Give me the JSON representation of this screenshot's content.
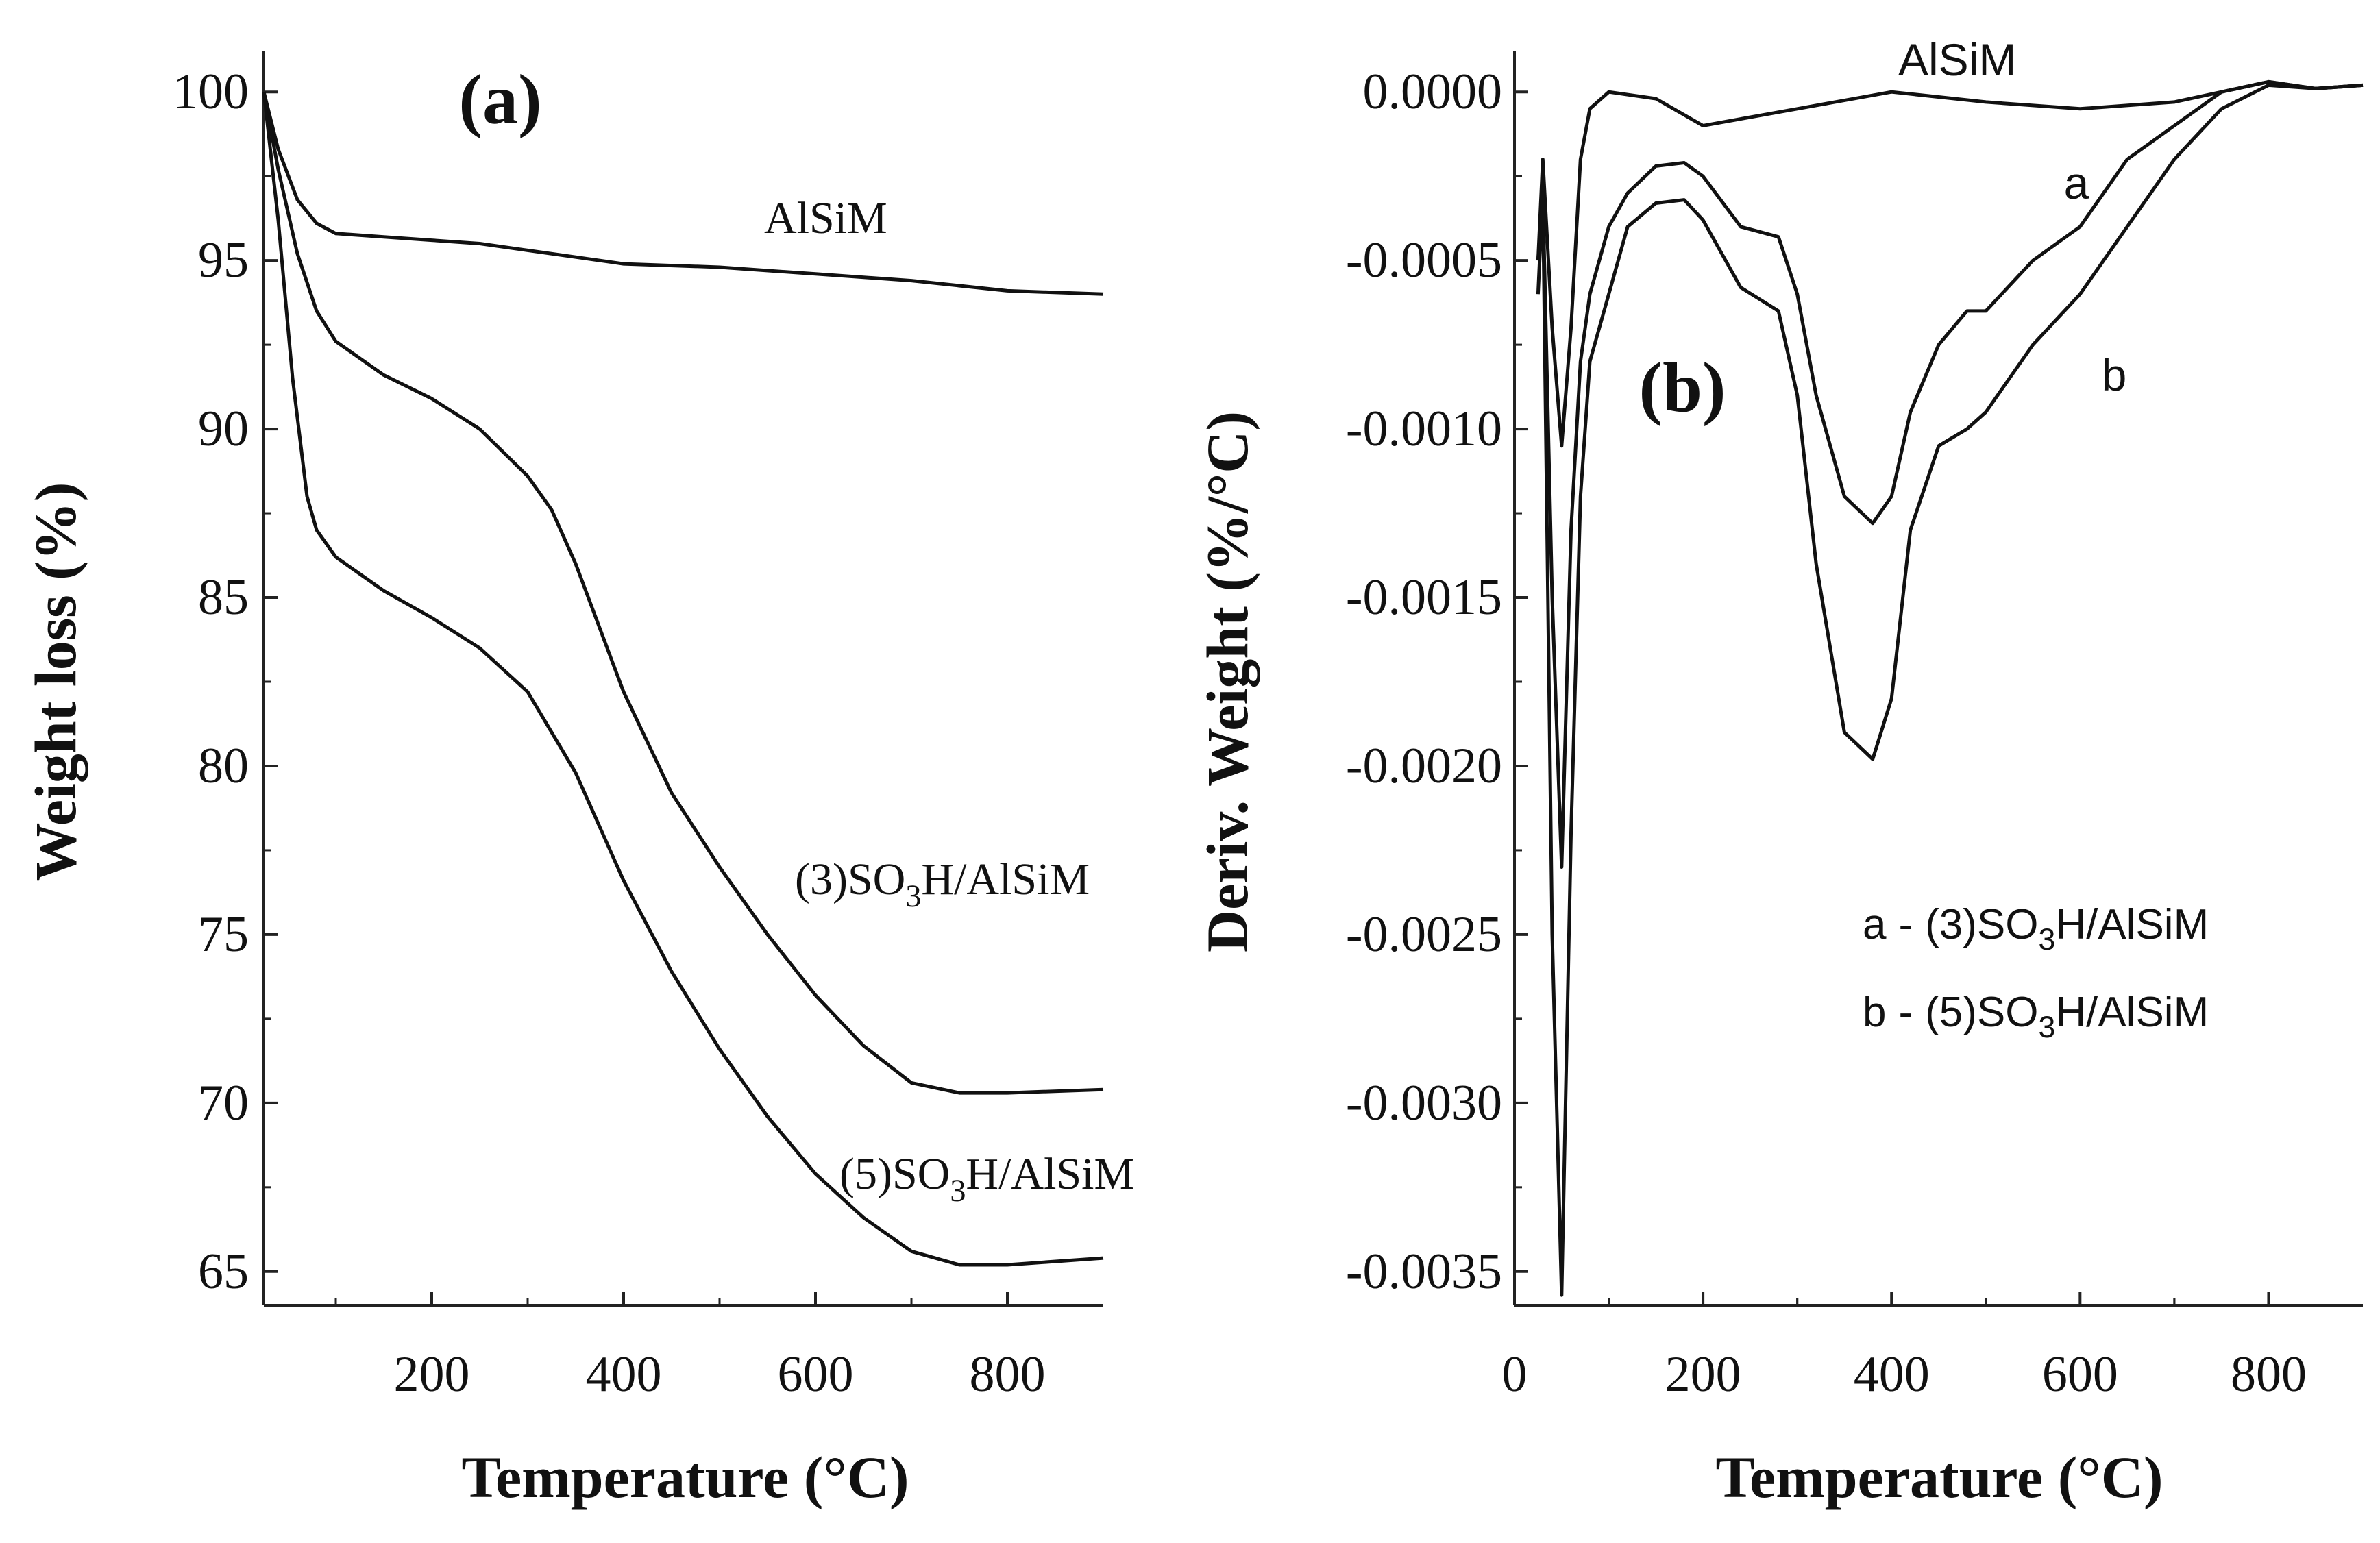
{
  "chart_data": [
    {
      "type": "line",
      "panel_label": "(a)",
      "xlabel": "Temperature (°C)",
      "ylabel": "Weight loss (%)",
      "xlim": [
        25,
        900
      ],
      "ylim": [
        64,
        101
      ],
      "x_ticks": [
        200,
        400,
        600,
        800
      ],
      "y_ticks": [
        65,
        70,
        75,
        80,
        85,
        90,
        95,
        100
      ],
      "y_tick_labels": [
        "65",
        "70",
        "75",
        "80",
        "85",
        "90",
        "95",
        "100"
      ],
      "series": [
        {
          "name": "AlSiM",
          "label_parts": [
            "AlSiM"
          ],
          "x": [
            25,
            40,
            60,
            80,
            100,
            150,
            200,
            250,
            300,
            350,
            400,
            500,
            600,
            700,
            800,
            900
          ],
          "y": [
            100,
            98.3,
            96.8,
            96.1,
            95.8,
            95.7,
            95.6,
            95.5,
            95.3,
            95.1,
            94.9,
            94.8,
            94.6,
            94.4,
            94.1,
            94.0
          ]
        },
        {
          "name": "(3)SO3H/AlSiM",
          "label_parts": [
            "(3)SO",
            "3",
            "H/AlSiM"
          ],
          "x": [
            25,
            40,
            60,
            80,
            100,
            150,
            200,
            250,
            300,
            325,
            350,
            400,
            450,
            500,
            550,
            600,
            650,
            700,
            750,
            800,
            900
          ],
          "y": [
            100,
            97.7,
            95.2,
            93.5,
            92.6,
            91.6,
            90.9,
            90.0,
            88.6,
            87.6,
            86.0,
            82.2,
            79.2,
            77.0,
            75.0,
            73.2,
            71.7,
            70.6,
            70.3,
            70.3,
            70.4
          ]
        },
        {
          "name": "(5)SO3H/AlSiM",
          "label_parts": [
            "(5)SO",
            "3",
            "H/AlSiM"
          ],
          "x": [
            25,
            40,
            55,
            70,
            80,
            100,
            150,
            200,
            250,
            300,
            350,
            400,
            450,
            500,
            550,
            600,
            650,
            700,
            750,
            800,
            900
          ],
          "y": [
            100,
            96.2,
            91.5,
            88.0,
            87.0,
            86.2,
            85.2,
            84.4,
            83.5,
            82.2,
            79.8,
            76.6,
            73.9,
            71.6,
            69.6,
            67.9,
            66.6,
            65.6,
            65.2,
            65.2,
            65.4
          ]
        }
      ]
    },
    {
      "type": "line",
      "panel_label": "(b)",
      "xlabel": "Temperature (°C)",
      "ylabel": "Deriv. Weight (%/°C)",
      "xlim": [
        0,
        900
      ],
      "ylim": [
        -0.0036,
        0.0001
      ],
      "x_ticks": [
        0,
        200,
        400,
        600,
        800
      ],
      "y_ticks": [
        0,
        -0.0005,
        -0.001,
        -0.0015,
        -0.002,
        -0.0025,
        -0.003,
        -0.0035
      ],
      "y_tick_labels": [
        "0.0000",
        "-0.0005",
        "-0.0010",
        "-0.0015",
        "-0.0020",
        "-0.0025",
        "-0.0030",
        "-0.0035"
      ],
      "legend": [
        {
          "key": "a",
          "sep": "-",
          "parts": [
            "(3)SO",
            "3",
            "H/AlSiM"
          ]
        },
        {
          "key": "b",
          "sep": "-",
          "parts": [
            "(5)SO",
            "3",
            "H/AlSiM"
          ]
        }
      ],
      "series": [
        {
          "name": "AlSiM",
          "label_parts": [
            "AlSiM"
          ],
          "x": [
            25,
            30,
            40,
            50,
            60,
            70,
            80,
            100,
            150,
            200,
            300,
            400,
            500,
            600,
            700,
            750,
            800,
            850,
            900
          ],
          "y": [
            -0.0005,
            -0.0002,
            -0.0007,
            -0.00105,
            -0.0007,
            -0.0002,
            -5e-05,
            0,
            -2e-05,
            -0.0001,
            -5e-05,
            0,
            -3e-05,
            -5e-05,
            -3e-05,
            0,
            3e-05,
            1e-05,
            2e-05
          ]
        },
        {
          "name": "a",
          "label_parts": [
            "a"
          ],
          "x": [
            25,
            30,
            40,
            50,
            60,
            70,
            80,
            100,
            120,
            150,
            180,
            200,
            240,
            280,
            300,
            320,
            350,
            380,
            400,
            420,
            450,
            480,
            500,
            550,
            600,
            650,
            700,
            750,
            800,
            850,
            900
          ],
          "y": [
            -0.0005,
            -0.0003,
            -0.0015,
            -0.0023,
            -0.0013,
            -0.0008,
            -0.0006,
            -0.0004,
            -0.0003,
            -0.00022,
            -0.00021,
            -0.00025,
            -0.0004,
            -0.00043,
            -0.0006,
            -0.0009,
            -0.0012,
            -0.00128,
            -0.0012,
            -0.00095,
            -0.00075,
            -0.00065,
            -0.00065,
            -0.0005,
            -0.0004,
            -0.0002,
            -0.0001,
            0,
            3e-05,
            1e-05,
            2e-05
          ]
        },
        {
          "name": "b",
          "label_parts": [
            "b"
          ],
          "x": [
            25,
            30,
            40,
            50,
            60,
            70,
            80,
            100,
            120,
            150,
            180,
            200,
            240,
            280,
            300,
            320,
            350,
            380,
            400,
            420,
            450,
            480,
            500,
            550,
            600,
            650,
            700,
            750,
            800,
            850,
            900
          ],
          "y": [
            -0.0006,
            -0.0003,
            -0.0025,
            -0.00357,
            -0.0022,
            -0.0012,
            -0.0008,
            -0.0006,
            -0.0004,
            -0.00033,
            -0.00032,
            -0.00038,
            -0.00058,
            -0.00065,
            -0.0009,
            -0.0014,
            -0.0019,
            -0.00198,
            -0.0018,
            -0.0013,
            -0.00105,
            -0.001,
            -0.00095,
            -0.00075,
            -0.0006,
            -0.0004,
            -0.0002,
            -5e-05,
            2e-05,
            1e-05,
            2e-05
          ]
        }
      ]
    }
  ]
}
